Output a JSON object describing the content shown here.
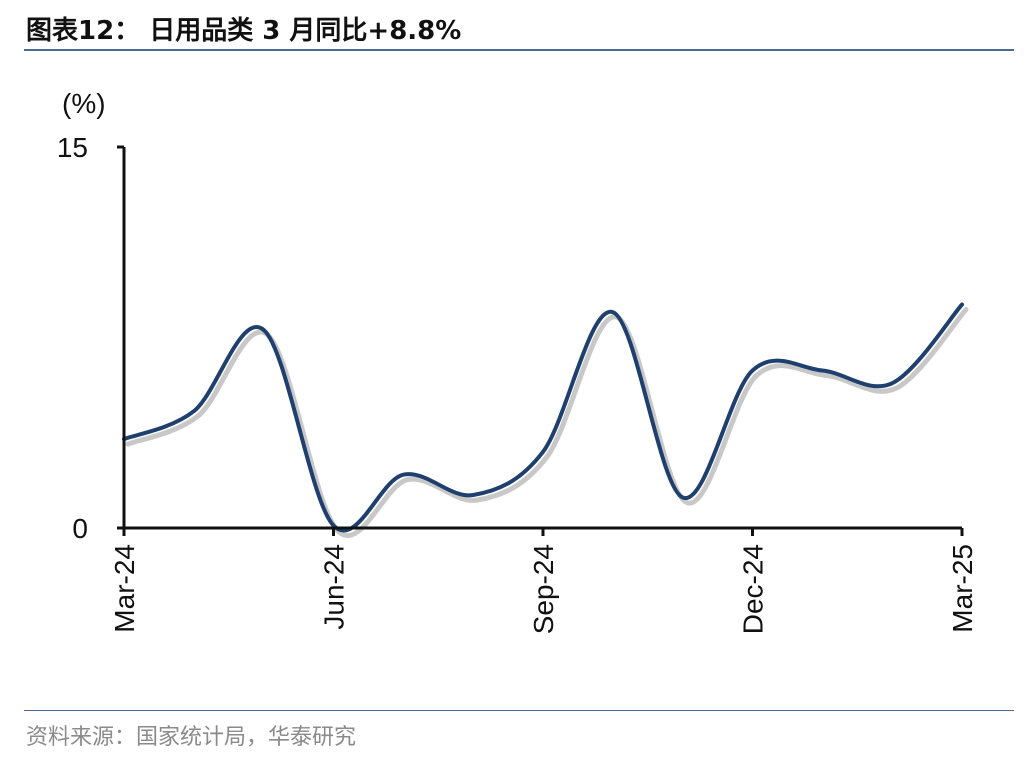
{
  "header": {
    "title": "图表12：  日用品类 3 月同比+8.8%"
  },
  "footer": {
    "source": "资料来源：国家统计局，华泰研究"
  },
  "colors": {
    "line": "#1f3f6e",
    "axis": "#111111",
    "rule": "#4a6a8f"
  },
  "chart_data": {
    "type": "line",
    "title": "",
    "xlabel": "",
    "ylabel": "(%)",
    "ylim": [
      0,
      15
    ],
    "yticks": [
      "0",
      "15"
    ],
    "xtick_labels": [
      "Mar-24",
      "Jun-24",
      "Sep-24",
      "Dec-24",
      "Mar-25"
    ],
    "grid": false,
    "legend": "none",
    "series": [
      {
        "x": [
          "Mar-24",
          "Apr-24",
          "May-24",
          "Jun-24",
          "Jul-24",
          "Aug-24",
          "Sep-24",
          "Oct-24",
          "Nov-24",
          "Dec-24",
          "Jan-25",
          "Feb-25",
          "Mar-25"
        ],
        "values": [
          3.5,
          4.6,
          7.8,
          0.1,
          2.1,
          1.3,
          3.0,
          8.5,
          1.2,
          6.2,
          6.2,
          5.7,
          8.8
        ]
      }
    ]
  }
}
